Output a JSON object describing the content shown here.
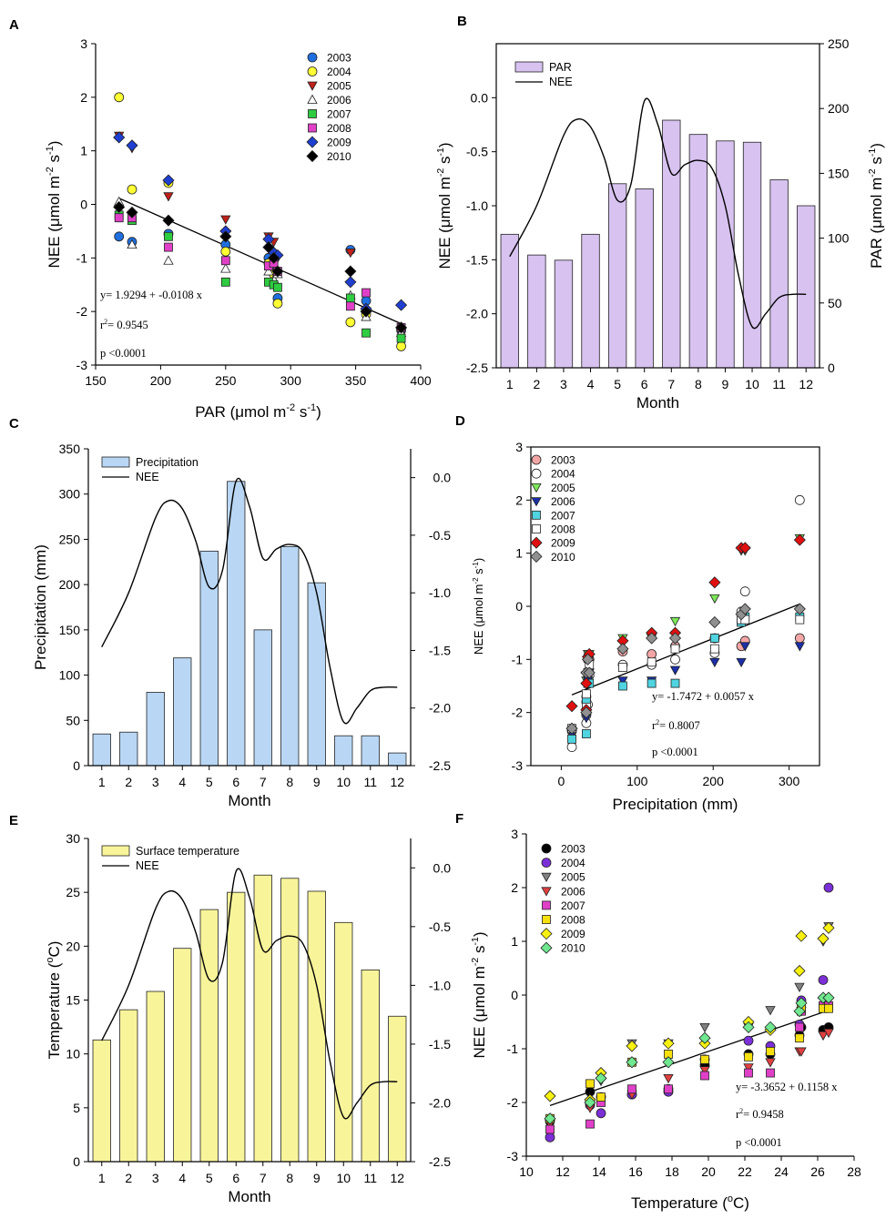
{
  "figure": {
    "panel_letters": [
      "A",
      "B",
      "C",
      "D",
      "E",
      "F"
    ]
  },
  "chart_data": [
    {
      "panel": "A",
      "type": "scatter",
      "title": "",
      "xlabel": "PAR (μmol m",
      "xlabel_sup": "-2",
      "xlabel_mid": " s",
      "xlabel_sup2": "-1",
      "xlabel_end": ")",
      "ylabel": "NEE (μmol m",
      "ylabel_sup": "-2",
      "ylabel_mid": " s",
      "ylabel_sup2": "-1",
      "ylabel_end": ")",
      "xlim": [
        150,
        400
      ],
      "ylim": [
        -3,
        3
      ],
      "xticks": [
        150,
        200,
        250,
        300,
        350,
        400
      ],
      "yticks": [
        -3,
        -2,
        -1,
        0,
        1,
        2,
        3
      ],
      "x_months": [
        168,
        178,
        206,
        250,
        283,
        287,
        290,
        346,
        358,
        385
      ],
      "series": [
        {
          "name": "2003",
          "marker": "circle",
          "color": "#1f6fe0",
          "values": [
            -0.6,
            -0.7,
            -0.55,
            -0.75,
            -1.0,
            -1.2,
            -1.75,
            -0.85,
            -1.8,
            -2.35
          ]
        },
        {
          "name": "2004",
          "marker": "circle",
          "color": "#ffff33",
          "values": [
            2.0,
            0.28,
            0.4,
            -0.88,
            -1.1,
            -1.3,
            -1.85,
            -2.2,
            -2.05,
            -2.65
          ]
        },
        {
          "name": "2005",
          "marker": "tri-down",
          "color": "#c0201a",
          "values": [
            1.28,
            1.05,
            0.15,
            -0.28,
            -0.6,
            -0.7,
            -1.0,
            -0.9,
            -2.0,
            -2.4
          ]
        },
        {
          "name": "2006",
          "marker": "tri-up",
          "color": "#ffffff",
          "values": [
            0.05,
            -0.75,
            -1.05,
            -1.2,
            -1.25,
            -1.4,
            -1.3,
            -1.7,
            -2.1,
            -2.4
          ]
        },
        {
          "name": "2007",
          "marker": "square",
          "color": "#2ecc40",
          "values": [
            -0.2,
            -0.3,
            -0.6,
            -1.45,
            -1.45,
            -1.5,
            -1.55,
            -1.75,
            -2.4,
            -2.5
          ]
        },
        {
          "name": "2008",
          "marker": "square",
          "color": "#e040c8",
          "values": [
            -0.25,
            -0.25,
            -0.8,
            -1.05,
            -1.15,
            -1.1,
            -1.25,
            -1.9,
            -1.65,
            -2.3
          ]
        },
        {
          "name": "2009",
          "marker": "diamond",
          "color": "#1f3fd0",
          "values": [
            1.25,
            1.1,
            0.45,
            -0.5,
            -0.65,
            -0.9,
            -0.95,
            -1.45,
            -1.95,
            -1.88
          ]
        },
        {
          "name": "2010",
          "marker": "diamond",
          "color": "#000000",
          "values": [
            -0.05,
            -0.15,
            -0.3,
            -0.6,
            -0.8,
            -1.0,
            -1.25,
            -1.25,
            -2.0,
            -2.3
          ]
        }
      ],
      "fit": {
        "intercept": 1.9294,
        "slope": -0.0108,
        "x_range": [
          168,
          385
        ]
      },
      "annotations": [
        "y= 1.9294 + -0.0108 x",
        "r",
        "2",
        "= 0.9545",
        "p <0.0001"
      ]
    },
    {
      "panel": "B",
      "type": "bar",
      "categories": [
        "1",
        "2",
        "3",
        "4",
        "5",
        "6",
        "7",
        "8",
        "9",
        "10",
        "11",
        "12"
      ],
      "bar_series": {
        "name": "PAR",
        "color": "#d7c2f0",
        "values": [
          103,
          87,
          83,
          103,
          142,
          138,
          191,
          180,
          175,
          174,
          145,
          125
        ]
      },
      "line_series": {
        "name": "NEE",
        "x": [
          1,
          2,
          3,
          3.5,
          4,
          4.5,
          5,
          5.5,
          6,
          6.5,
          7,
          7.5,
          8,
          8.5,
          9,
          9.5,
          10,
          10.5,
          11,
          11.5,
          12
        ],
        "values": [
          -1.47,
          -1.0,
          -0.35,
          -0.2,
          -0.27,
          -0.55,
          -0.95,
          -0.8,
          -0.03,
          -0.25,
          -0.7,
          -0.62,
          -0.58,
          -0.65,
          -1.0,
          -1.65,
          -2.12,
          -2.0,
          -1.85,
          -1.82,
          -1.82
        ]
      },
      "xlabel": "Month",
      "ylabel_left": "NEE (μmol m",
      "ylabel_right": "PAR (μmol m",
      "ylim_left": [
        -2.5,
        0.5
      ],
      "yticks_left": [
        -2.5,
        -2.0,
        -1.5,
        -1.0,
        -0.5,
        0.0
      ],
      "ylim_right": [
        0,
        250
      ],
      "yticks_right": [
        0,
        50,
        100,
        150,
        200,
        250
      ],
      "legend": [
        "PAR",
        "NEE"
      ]
    },
    {
      "panel": "C",
      "type": "bar",
      "categories": [
        "1",
        "2",
        "3",
        "4",
        "5",
        "6",
        "7",
        "8",
        "9",
        "10",
        "11",
        "12"
      ],
      "bar_series": {
        "name": "Precipitation",
        "color": "#b9d7f5",
        "values": [
          35,
          37,
          81,
          119,
          237,
          314,
          150,
          242,
          202,
          33,
          33,
          14
        ]
      },
      "line_series": {
        "name": "NEE",
        "x": [
          1,
          2,
          3,
          3.5,
          4,
          4.5,
          5,
          5.5,
          6,
          6.5,
          7,
          7.5,
          8,
          8.5,
          9,
          9.5,
          10,
          10.5,
          11,
          11.5,
          12
        ],
        "values": [
          -1.47,
          -1.0,
          -0.35,
          -0.2,
          -0.27,
          -0.55,
          -0.95,
          -0.8,
          -0.03,
          -0.25,
          -0.7,
          -0.62,
          -0.58,
          -0.65,
          -1.0,
          -1.65,
          -2.12,
          -2.0,
          -1.85,
          -1.82,
          -1.82
        ]
      },
      "xlabel": "Month",
      "ylabel_left": "Precipitation (mm)",
      "ylim_left": [
        0,
        350
      ],
      "yticks_left": [
        0,
        50,
        100,
        150,
        200,
        250,
        300,
        350
      ],
      "ylim_right": [
        -2.5,
        0.25
      ],
      "yticks_right": [
        -2.5,
        -2.0,
        -1.5,
        -1.0,
        -0.5,
        0.0
      ],
      "legend": [
        "Precipitation",
        "NEE"
      ]
    },
    {
      "panel": "D",
      "type": "scatter",
      "xlabel": "Precipitation (mm)",
      "ylabel": "NEE (μmol m",
      "xlim": [
        -40,
        340
      ],
      "ylim": [
        -3,
        3
      ],
      "xticks": [
        0,
        100,
        200,
        300
      ],
      "yticks": [
        -3,
        -2,
        -1,
        0,
        1,
        2,
        3
      ],
      "x_months": [
        14,
        33,
        33,
        35,
        37,
        81,
        119,
        150,
        202,
        237,
        242,
        314
      ],
      "series": [
        {
          "name": "2003",
          "marker": "circle",
          "color": "#f4a6a6",
          "values": [
            -2.35,
            -1.8,
            -1.7,
            -1.0,
            -1.0,
            -0.85,
            -0.9,
            -0.75,
            -0.6,
            -0.75,
            -0.65,
            -0.6
          ]
        },
        {
          "name": "2004",
          "marker": "circle",
          "color": "#ffffff",
          "values": [
            -2.65,
            -2.05,
            -2.2,
            -1.85,
            -1.3,
            -1.1,
            -1.1,
            -1.0,
            -0.88,
            -0.1,
            0.28,
            2.0
          ]
        },
        {
          "name": "2005",
          "marker": "tri-down",
          "color": "#7be85a",
          "values": [
            -2.4,
            -2.0,
            -1.4,
            -0.9,
            -0.9,
            -0.6,
            -0.6,
            -0.28,
            0.15,
            1.05,
            1.05,
            1.28
          ]
        },
        {
          "name": "2006",
          "marker": "tri-down",
          "color": "#1a2fa8",
          "values": [
            -2.4,
            -2.1,
            -1.3,
            -1.4,
            -1.25,
            -1.4,
            -1.4,
            -1.2,
            -1.05,
            -1.05,
            -0.75,
            -0.75
          ]
        },
        {
          "name": "2007",
          "marker": "square",
          "color": "#4fd4e0",
          "values": [
            -2.5,
            -2.4,
            -1.75,
            -1.45,
            -1.45,
            -1.5,
            -1.45,
            -1.45,
            -0.6,
            -0.3,
            -0.2,
            -0.2
          ]
        },
        {
          "name": "2008",
          "marker": "square",
          "color": "#ffffff",
          "values": [
            -2.3,
            -1.9,
            -1.65,
            -1.25,
            -1.1,
            -1.15,
            -1.05,
            -0.8,
            -0.8,
            -0.25,
            -0.25,
            -0.25
          ]
        },
        {
          "name": "2009",
          "marker": "diamond",
          "color": "#e01010",
          "values": [
            -1.88,
            -1.45,
            -1.95,
            -0.95,
            -0.9,
            -0.65,
            -0.5,
            -0.5,
            0.45,
            1.1,
            1.1,
            1.25
          ]
        },
        {
          "name": "2010",
          "marker": "diamond",
          "color": "#909090",
          "values": [
            -2.3,
            -1.25,
            -2.0,
            -1.0,
            -1.25,
            -0.8,
            -0.6,
            -0.6,
            -0.3,
            -0.15,
            -0.05,
            -0.05
          ]
        }
      ],
      "fit": {
        "intercept": -1.7472,
        "slope": 0.0057,
        "x_range": [
          14,
          314
        ]
      },
      "annotations": [
        "y= -1.7472 + 0.0057 x",
        "r",
        "2",
        "= 0.8007",
        "p <0.0001"
      ]
    },
    {
      "panel": "E",
      "type": "bar",
      "categories": [
        "1",
        "2",
        "3",
        "4",
        "5",
        "6",
        "7",
        "8",
        "9",
        "10",
        "11",
        "12"
      ],
      "bar_series": {
        "name": "Surface temperature",
        "color": "#f8f49a",
        "values": [
          11.3,
          14.1,
          15.8,
          19.8,
          23.4,
          25.0,
          26.6,
          26.3,
          25.1,
          22.2,
          17.8,
          13.5
        ]
      },
      "line_series": {
        "name": "NEE",
        "x": [
          1,
          2,
          3,
          3.5,
          4,
          4.5,
          5,
          5.5,
          6,
          6.5,
          7,
          7.5,
          8,
          8.5,
          9,
          9.5,
          10,
          10.5,
          11,
          11.5,
          12
        ],
        "values": [
          -1.47,
          -1.0,
          -0.35,
          -0.2,
          -0.27,
          -0.55,
          -0.95,
          -0.8,
          -0.03,
          -0.25,
          -0.7,
          -0.62,
          -0.58,
          -0.65,
          -1.0,
          -1.65,
          -2.12,
          -2.0,
          -1.85,
          -1.82,
          -1.82
        ]
      },
      "xlabel": "Month",
      "ylabel_left": "Temperature (",
      "ylabel_left_sup": "o",
      "ylabel_left_end": "C)",
      "ylim_left": [
        0,
        30
      ],
      "yticks_left": [
        0,
        5,
        10,
        15,
        20,
        25,
        30
      ],
      "ylim_right": [
        -2.5,
        0.25
      ],
      "yticks_right": [
        -2.5,
        -2.0,
        -1.5,
        -1.0,
        -0.5,
        0.0
      ],
      "legend": [
        "Surface temperature",
        "NEE"
      ]
    },
    {
      "panel": "F",
      "type": "scatter",
      "xlabel": "Temperature (",
      "xlabel_sup": "o",
      "xlabel_end": "C)",
      "ylabel": "NEE (μmol m",
      "xlim": [
        10,
        28
      ],
      "ylim": [
        -3,
        3
      ],
      "xticks": [
        10,
        12,
        14,
        16,
        18,
        20,
        22,
        24,
        26,
        28
      ],
      "yticks": [
        -3,
        -2,
        -1,
        0,
        1,
        2,
        3
      ],
      "x_months": [
        11.3,
        13.5,
        14.1,
        15.8,
        17.8,
        19.8,
        22.2,
        23.4,
        25.0,
        25.1,
        26.3,
        26.6
      ],
      "series": [
        {
          "name": "2003",
          "marker": "circle",
          "color": "#000000",
          "values": [
            -2.35,
            -1.8,
            -1.9,
            -1.85,
            -1.75,
            -1.3,
            -1.1,
            -1.1,
            -0.75,
            -0.6,
            -0.65,
            -0.6
          ]
        },
        {
          "name": "2004",
          "marker": "circle",
          "color": "#7b2fd6",
          "values": [
            -2.65,
            -2.05,
            -2.2,
            -1.85,
            -1.8,
            -1.2,
            -0.85,
            -0.95,
            -0.55,
            -0.1,
            0.28,
            2.0
          ]
        },
        {
          "name": "2005",
          "marker": "tri-down",
          "color": "#808080",
          "values": [
            -2.4,
            -2.0,
            -1.6,
            -0.9,
            -0.9,
            -0.6,
            -0.6,
            -0.28,
            0.15,
            -0.3,
            1.0,
            1.28
          ]
        },
        {
          "name": "2006",
          "marker": "tri-down",
          "color": "#e04040",
          "values": [
            -2.4,
            -2.1,
            -1.95,
            -1.85,
            -1.55,
            -1.4,
            -1.35,
            -1.25,
            -1.05,
            -1.05,
            -0.75,
            -0.7
          ]
        },
        {
          "name": "2007",
          "marker": "square",
          "color": "#e040c8",
          "values": [
            -2.5,
            -2.4,
            -2.0,
            -1.75,
            -1.75,
            -1.5,
            -1.45,
            -1.45,
            -0.6,
            -0.3,
            -0.2,
            -0.2
          ]
        },
        {
          "name": "2008",
          "marker": "square",
          "color": "#f7e010",
          "values": [
            -2.3,
            -1.65,
            -1.9,
            -1.25,
            -1.1,
            -1.2,
            -1.15,
            -1.05,
            -0.8,
            -0.25,
            -0.25,
            -0.25
          ]
        },
        {
          "name": "2009",
          "marker": "diamond",
          "color": "#f7f010",
          "values": [
            -1.88,
            -1.95,
            -1.45,
            -0.95,
            -0.9,
            -0.9,
            -0.5,
            -0.65,
            0.45,
            1.1,
            1.05,
            1.25
          ]
        },
        {
          "name": "2010",
          "marker": "diamond",
          "color": "#70e890",
          "values": [
            -2.3,
            -2.0,
            -1.55,
            -1.25,
            -1.25,
            -0.8,
            -0.6,
            -0.6,
            -0.3,
            -0.15,
            -0.05,
            -0.05
          ]
        }
      ],
      "fit": {
        "intercept": -3.3652,
        "slope": 0.1158,
        "x_range": [
          11.3,
          26.6
        ]
      },
      "annotations": [
        "y= -3.3652 + 0.1158 x",
        "r",
        "2",
        "= 0.9458",
        "p <0.0001"
      ]
    }
  ]
}
